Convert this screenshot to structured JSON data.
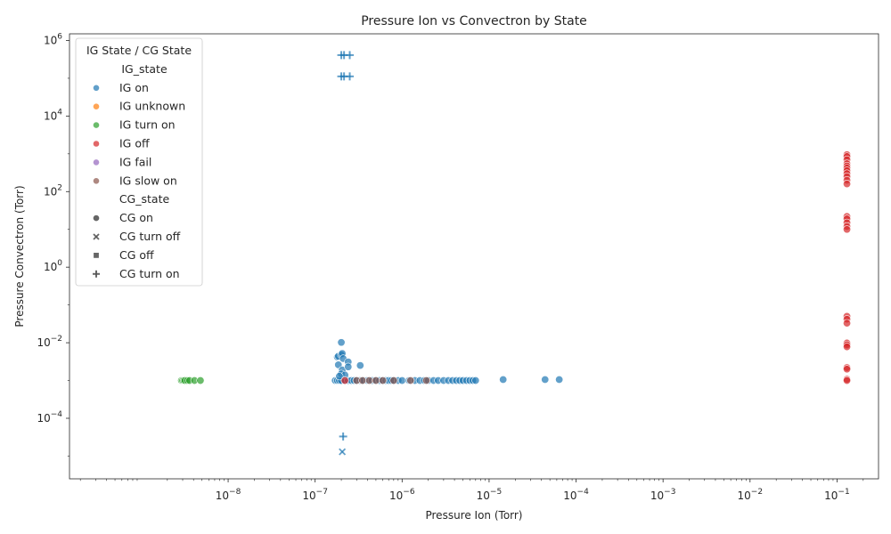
{
  "chart_data": {
    "type": "scatter",
    "title": "Pressure Ion vs Convectron by State",
    "xlabel": "Pressure Ion (Torr)",
    "ylabel": "Pressure Convectron (Torr)",
    "xscale": "log",
    "yscale": "log",
    "xlim": [
      1.5e-10,
      0.3
    ],
    "ylim": [
      2.5e-06,
      1500000.0
    ],
    "x_ticks": [
      {
        "value": 1e-08,
        "base": "10",
        "exp": "−8"
      },
      {
        "value": 1e-07,
        "base": "10",
        "exp": "−7"
      },
      {
        "value": 1e-06,
        "base": "10",
        "exp": "−6"
      },
      {
        "value": 1e-05,
        "base": "10",
        "exp": "−5"
      },
      {
        "value": 0.0001,
        "base": "10",
        "exp": "−4"
      },
      {
        "value": 0.001,
        "base": "10",
        "exp": "−3"
      },
      {
        "value": 0.01,
        "base": "10",
        "exp": "−2"
      },
      {
        "value": 0.1,
        "base": "10",
        "exp": "−1"
      }
    ],
    "y_ticks": [
      {
        "value": 0.0001,
        "base": "10",
        "exp": "−4"
      },
      {
        "value": 0.01,
        "base": "10",
        "exp": "−2"
      },
      {
        "value": 1,
        "base": "10",
        "exp": "0"
      },
      {
        "value": 100.0,
        "base": "10",
        "exp": "2"
      },
      {
        "value": 10000.0,
        "base": "10",
        "exp": "4"
      },
      {
        "value": 1000000.0,
        "base": "10",
        "exp": "6"
      }
    ],
    "grid": false,
    "legend": {
      "placement": "top-left",
      "title": "IG State / CG State",
      "hue_title": "IG_state",
      "style_title": "CG_state",
      "hue_entries": [
        {
          "label": "IG on",
          "color": "#1f77b4"
        },
        {
          "label": "IG unknown",
          "color": "#ff7f0e"
        },
        {
          "label": "IG turn on",
          "color": "#2ca02c"
        },
        {
          "label": "IG off",
          "color": "#d62728"
        },
        {
          "label": "IG fail",
          "color": "#9467bd"
        },
        {
          "label": "IG slow on",
          "color": "#8c564b"
        }
      ],
      "style_entries": [
        {
          "label": "CG on",
          "marker": "circle"
        },
        {
          "label": "CG turn off",
          "marker": "x"
        },
        {
          "label": "CG off",
          "marker": "square"
        },
        {
          "label": "CG turn on",
          "marker": "plus"
        }
      ]
    },
    "series": [
      {
        "name": "IG on",
        "color": "#1f77b4",
        "points": [
          [
            1.7e-07,
            0.001
          ],
          [
            1.8e-07,
            0.001
          ],
          [
            1.9e-07,
            0.001
          ],
          [
            2e-07,
            0.001
          ],
          [
            2.2e-07,
            0.001
          ],
          [
            2.4e-07,
            0.001
          ],
          [
            2.6e-07,
            0.001
          ],
          [
            2.8e-07,
            0.001
          ],
          [
            3e-07,
            0.001
          ],
          [
            3.3e-07,
            0.001
          ],
          [
            3.6e-07,
            0.001
          ],
          [
            4e-07,
            0.001
          ],
          [
            4.5e-07,
            0.001
          ],
          [
            5e-07,
            0.001
          ],
          [
            5.5e-07,
            0.001
          ],
          [
            6e-07,
            0.001
          ],
          [
            6.5e-07,
            0.001
          ],
          [
            7e-07,
            0.001
          ],
          [
            7.5e-07,
            0.001
          ],
          [
            8e-07,
            0.001
          ],
          [
            9e-07,
            0.001
          ],
          [
            1e-06,
            0.001
          ],
          [
            1.2e-06,
            0.001
          ],
          [
            1.4e-06,
            0.001
          ],
          [
            1.6e-06,
            0.001
          ],
          [
            1.8e-06,
            0.001
          ],
          [
            2e-06,
            0.001
          ],
          [
            2.3e-06,
            0.001
          ],
          [
            2.6e-06,
            0.001
          ],
          [
            3e-06,
            0.001
          ],
          [
            3.4e-06,
            0.001
          ],
          [
            3.8e-06,
            0.001
          ],
          [
            4.2e-06,
            0.001
          ],
          [
            4.6e-06,
            0.001
          ],
          [
            5e-06,
            0.001
          ],
          [
            5.5e-06,
            0.001
          ],
          [
            6e-06,
            0.001
          ],
          [
            6.5e-06,
            0.001
          ],
          [
            7e-06,
            0.001
          ],
          [
            1.45e-05,
            0.00106
          ],
          [
            4.4e-05,
            0.00106
          ],
          [
            6.4e-05,
            0.00106
          ],
          [
            1.8e-07,
            0.0042
          ],
          [
            1.85e-07,
            0.0044
          ],
          [
            2e-07,
            0.0048
          ],
          [
            2.05e-07,
            0.0052
          ],
          [
            2.1e-07,
            0.0038
          ],
          [
            2e-07,
            0.0102
          ],
          [
            2.4e-07,
            0.0031
          ],
          [
            1.85e-07,
            0.0026
          ],
          [
            2.05e-07,
            0.0019
          ],
          [
            2.4e-07,
            0.0023
          ],
          [
            3.3e-07,
            0.0025
          ],
          [
            2e-07,
            0.0015
          ],
          [
            2.2e-07,
            0.0014
          ],
          [
            1.9e-07,
            0.0013
          ]
        ]
      },
      {
        "name": "IG on / CG turn on",
        "color": "#1f77b4",
        "marker": "plus",
        "points": [
          [
            2e-07,
            410000
          ],
          [
            2.15e-07,
            410000
          ],
          [
            2.5e-07,
            410000
          ],
          [
            2e-07,
            112000
          ],
          [
            2.15e-07,
            112000
          ],
          [
            2.5e-07,
            112000
          ],
          [
            2.1e-07,
            3.3e-05
          ]
        ]
      },
      {
        "name": "IG on / CG turn off",
        "color": "#1f77b4",
        "marker": "x",
        "points": [
          [
            2.05e-07,
            1.3e-05
          ]
        ]
      },
      {
        "name": "IG turn on",
        "color": "#2ca02c",
        "points": [
          [
            2.9e-09,
            0.001
          ],
          [
            3e-09,
            0.001
          ],
          [
            3.1e-09,
            0.001
          ],
          [
            3.2e-09,
            0.001
          ],
          [
            3.4e-09,
            0.001
          ],
          [
            3.6e-09,
            0.001
          ],
          [
            4.1e-09,
            0.001
          ],
          [
            4.8e-09,
            0.001
          ]
        ]
      },
      {
        "name": "IG off",
        "color": "#d62728",
        "points": [
          [
            0.13,
            950
          ],
          [
            0.13,
            850
          ],
          [
            0.13,
            700
          ],
          [
            0.13,
            550
          ],
          [
            0.13,
            480
          ],
          [
            0.13,
            420
          ],
          [
            0.13,
            360
          ],
          [
            0.13,
            300
          ],
          [
            0.13,
            250
          ],
          [
            0.13,
            200
          ],
          [
            0.13,
            160
          ],
          [
            0.13,
            22
          ],
          [
            0.13,
            19
          ],
          [
            0.13,
            15
          ],
          [
            0.13,
            12
          ],
          [
            0.13,
            10
          ],
          [
            0.13,
            0.05
          ],
          [
            0.13,
            0.042
          ],
          [
            0.13,
            0.033
          ],
          [
            0.13,
            0.0098
          ],
          [
            0.13,
            0.0088
          ],
          [
            0.13,
            0.0078
          ],
          [
            0.13,
            0.0022
          ],
          [
            0.13,
            0.002
          ],
          [
            0.13,
            0.00108
          ],
          [
            0.13,
            0.001
          ],
          [
            2.2e-07,
            0.001
          ]
        ]
      },
      {
        "name": "IG slow on",
        "color": "#8c564b",
        "points": [
          [
            3e-07,
            0.001
          ],
          [
            3.5e-07,
            0.001
          ],
          [
            4.2e-07,
            0.001
          ],
          [
            5e-07,
            0.001
          ],
          [
            6e-07,
            0.001
          ],
          [
            8e-07,
            0.001
          ],
          [
            1.25e-06,
            0.001
          ],
          [
            1.9e-06,
            0.001
          ]
        ]
      }
    ]
  }
}
